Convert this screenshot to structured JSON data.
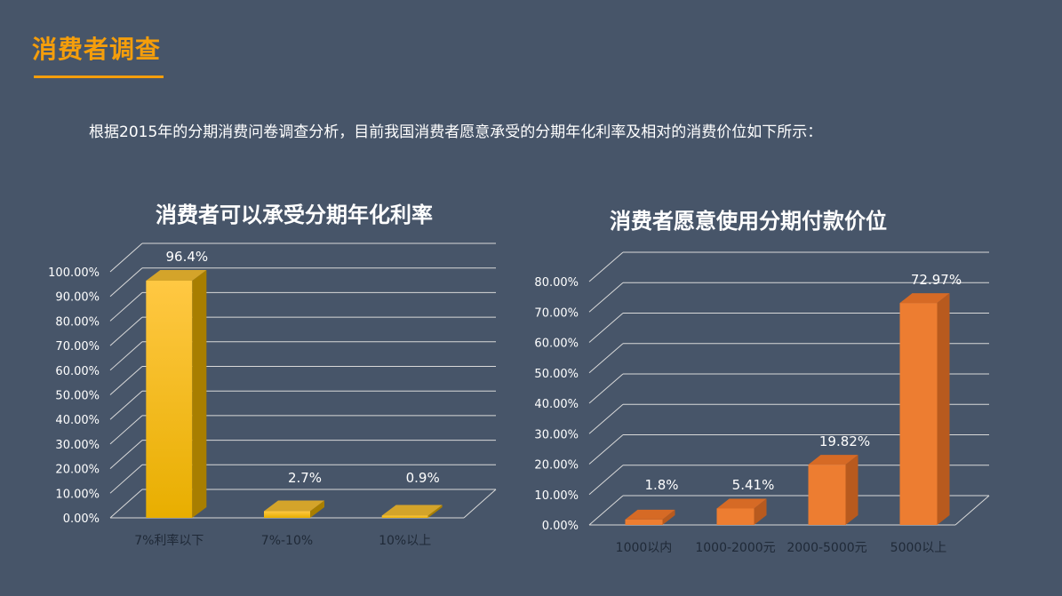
{
  "page": {
    "title": "消费者调查",
    "intro": "根据2015年的分期消费问卷调查分析，目前我国消费者愿意承受的分期年化利率及相对的消费价位如下所示："
  },
  "colors": {
    "accent": "#F59E0B",
    "background": "#475569",
    "bar_gold": "#F5B800",
    "bar_orange": "#ED7D31"
  },
  "chart_data": [
    {
      "type": "bar",
      "title": "消费者可以承受分期年化利率",
      "categories": [
        "7%利率以下",
        "7%-10%",
        "10%以上"
      ],
      "values": [
        96.4,
        2.7,
        0.9
      ],
      "data_labels": [
        "96.4%",
        "2.7%",
        "0.9%"
      ],
      "ylim": [
        0,
        100
      ],
      "yticks": [
        "0.00%",
        "10.00%",
        "20.00%",
        "30.00%",
        "40.00%",
        "50.00%",
        "60.00%",
        "70.00%",
        "80.00%",
        "90.00%",
        "100.00%"
      ],
      "grid": true,
      "style": "3d"
    },
    {
      "type": "bar",
      "title": "消费者愿意使用分期付款价位",
      "categories": [
        "1000以内",
        "1000-2000元",
        "2000-5000元",
        "5000以上"
      ],
      "values": [
        1.8,
        5.41,
        19.82,
        72.97
      ],
      "data_labels": [
        "1.8%",
        "5.41%",
        "19.82%",
        "72.97%"
      ],
      "ylim": [
        0,
        80
      ],
      "yticks": [
        "0.00%",
        "10.00%",
        "20.00%",
        "30.00%",
        "40.00%",
        "50.00%",
        "60.00%",
        "70.00%",
        "80.00%"
      ],
      "grid": true,
      "style": "3d"
    }
  ]
}
